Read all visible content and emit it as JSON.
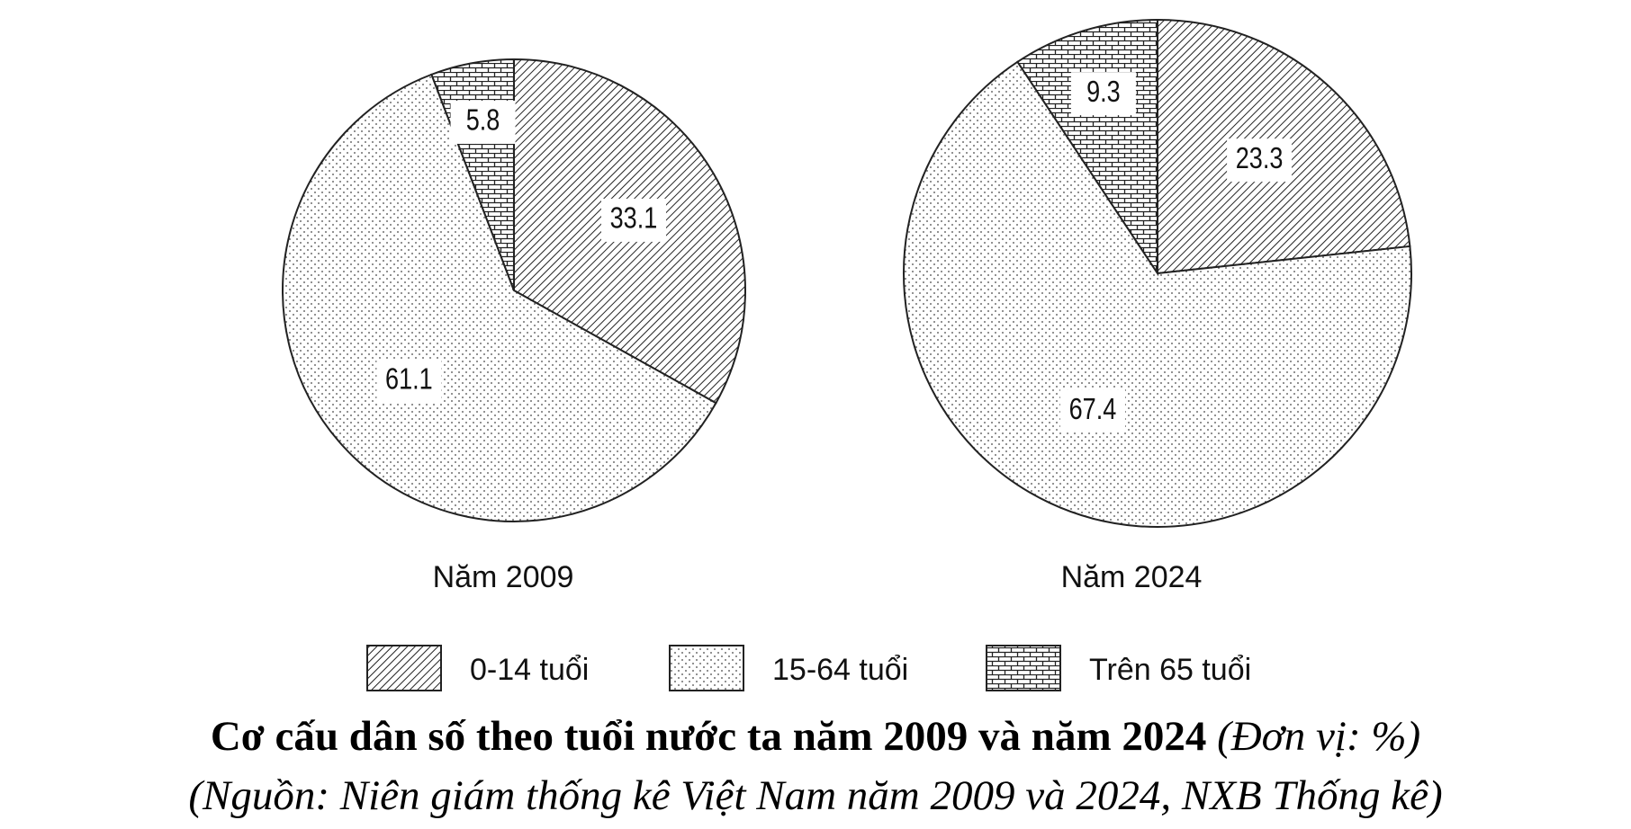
{
  "chart_data": [
    {
      "type": "pie",
      "title": "Năm 2009",
      "categories": [
        "0-14 tuổi",
        "15-64 tuổi",
        "Trên 65 tuổi"
      ],
      "values": [
        33.1,
        61.1,
        5.8
      ],
      "patterns": [
        "diagonal",
        "dots",
        "brick"
      ]
    },
    {
      "type": "pie",
      "title": "Năm 2024",
      "categories": [
        "0-14 tuổi",
        "15-64 tuổi",
        "Trên 65 tuổi"
      ],
      "values": [
        23.3,
        67.4,
        9.3
      ],
      "patterns": [
        "diagonal",
        "dots",
        "brick"
      ]
    }
  ],
  "caption": {
    "title": "Cơ cấu dân số theo tuổi nước ta năm 2009 và năm 2024",
    "unit": "(Đơn vị: %)",
    "source": "(Nguồn: Niên giám thống kê Việt Nam năm 2009 và 2024, NXB Thống kê)"
  }
}
